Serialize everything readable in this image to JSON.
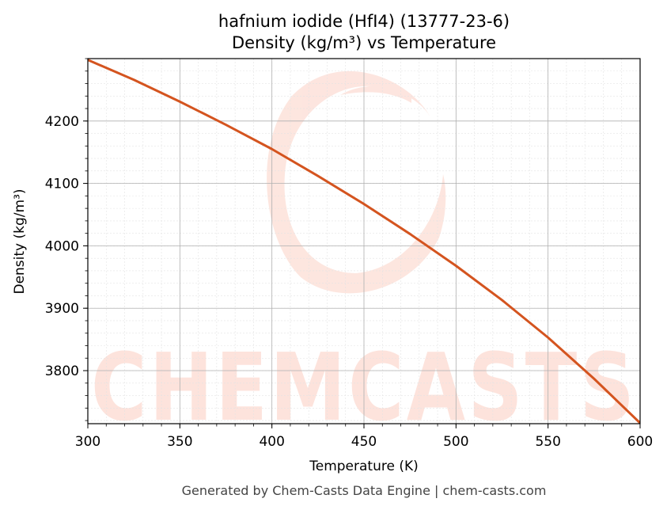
{
  "chart_data": {
    "type": "line",
    "title": "hafnium iodide (HfI4) (13777-23-6)",
    "subtitle": "Density (kg/m³) vs Temperature",
    "xlabel": "Temperature (K)",
    "ylabel": "Density (kg/m³)",
    "xlim": [
      300,
      600
    ],
    "ylim": [
      3715,
      4300
    ],
    "xticks": [
      300,
      350,
      400,
      450,
      500,
      550,
      600
    ],
    "yticks": [
      3800,
      3900,
      4000,
      4100,
      4200
    ],
    "grid": true,
    "series": [
      {
        "color": "#d4541f",
        "x": [
          300,
          325,
          350,
          375,
          400,
          425,
          450,
          475,
          500,
          525,
          550,
          575,
          600
        ],
        "y": [
          4298,
          4266,
          4231,
          4194,
          4155,
          4112,
          4067,
          4019,
          3968,
          3913,
          3853,
          3787,
          3716
        ]
      }
    ]
  },
  "watermark": {
    "text": "CHEMCASTS",
    "color": "#fde3dc"
  },
  "footer": "Generated by Chem-Casts Data Engine | chem-casts.com"
}
